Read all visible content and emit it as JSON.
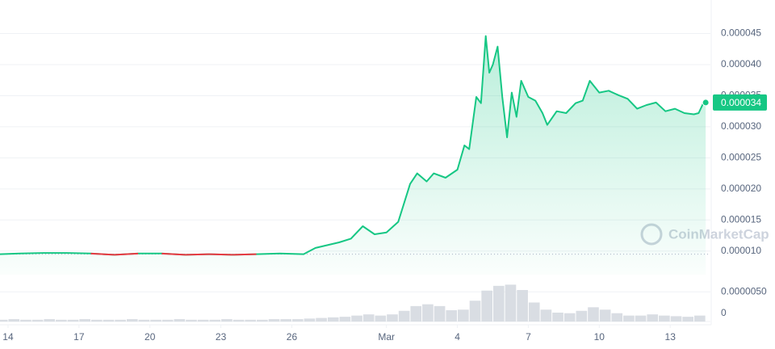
{
  "chart_data": [
    {
      "type": "line",
      "x": [
        13.66,
        14.5,
        15.5,
        16.5,
        17.5,
        18.5,
        19.5,
        20.5,
        21.5,
        22.5,
        23.5,
        24.5,
        25.5,
        26.5,
        27,
        28,
        28.5,
        29,
        29.5,
        30,
        30.5,
        31,
        31.3,
        31.7,
        32,
        32.5,
        33,
        33.3,
        33.5,
        33.8,
        34,
        34.2,
        34.35,
        34.5,
        34.7,
        34.9,
        35.1,
        35.3,
        35.5,
        35.7,
        36,
        36.3,
        36.6,
        36.8,
        37.2,
        37.6,
        38,
        38.3,
        38.6,
        39,
        39.4,
        39.8,
        40.2,
        40.6,
        41,
        41.4,
        41.8,
        42.2,
        42.6,
        43,
        43.2,
        43.4,
        43.5
      ],
      "values": [
        9.5e-06,
        9.6e-06,
        9.7e-06,
        9.7e-06,
        9.6e-06,
        9.4e-06,
        9.6e-06,
        9.6e-06,
        9.4e-06,
        9.5e-06,
        9.4e-06,
        9.5e-06,
        9.6e-06,
        9.5e-06,
        1.05e-05,
        1.14e-05,
        1.2e-05,
        1.4e-05,
        1.27e-05,
        1.3e-05,
        1.47e-05,
        2.08e-05,
        2.25e-05,
        2.12e-05,
        2.25e-05,
        2.18e-05,
        2.31e-05,
        2.7e-05,
        2.64e-05,
        3.48e-05,
        3.38e-05,
        4.46e-05,
        3.87e-05,
        4e-05,
        4.29e-05,
        3.48e-05,
        2.83e-05,
        3.55e-05,
        3.16e-05,
        3.74e-05,
        3.48e-05,
        3.42e-05,
        3.22e-05,
        3.03e-05,
        3.25e-05,
        3.22e-05,
        3.38e-05,
        3.42e-05,
        3.74e-05,
        3.55e-05,
        3.58e-05,
        3.51e-05,
        3.45e-05,
        3.29e-05,
        3.35e-05,
        3.39e-05,
        3.25e-05,
        3.29e-05,
        3.22e-05,
        3.2e-05,
        3.22e-05,
        3.38e-05,
        3.39e-05
      ],
      "color": "#16c784",
      "down_color": "#ea3943",
      "current_price_label": "0.000034",
      "watermark": "CoinMarketCap",
      "xlim": [
        13.66,
        43.7
      ],
      "xticks": [
        14,
        17,
        20,
        23,
        26,
        {
          "value": 30,
          "label": "Mar"
        },
        {
          "value": 33,
          "label": "4"
        },
        {
          "value": 36,
          "label": "7"
        },
        {
          "value": 39,
          "label": "10"
        },
        {
          "value": 42,
          "label": "13"
        }
      ],
      "ylim": [
        6.2e-06,
        5.04e-05
      ],
      "yticks": [
        {
          "value": 1e-05,
          "label": "0.000010"
        },
        1.5e-05,
        {
          "value": 2e-05,
          "label": "0.000020"
        },
        2.5e-05,
        {
          "value": 3e-05,
          "label": "0.000030"
        },
        3.5e-05,
        {
          "value": 4e-05,
          "label": "0.000040"
        },
        4.5e-05
      ],
      "grid": true
    },
    {
      "type": "bar",
      "x": [
        13.75,
        14.25,
        14.75,
        15.25,
        15.75,
        16.25,
        16.75,
        17.25,
        17.75,
        18.25,
        18.75,
        19.25,
        19.75,
        20.25,
        20.75,
        21.25,
        21.75,
        22.25,
        22.75,
        23.25,
        23.75,
        24.25,
        24.75,
        25.25,
        25.75,
        26.25,
        26.75,
        27.25,
        27.75,
        28.25,
        28.75,
        29.25,
        29.75,
        30.25,
        30.75,
        31.25,
        31.75,
        32.25,
        32.75,
        33.25,
        33.75,
        34.25,
        34.75,
        35.25,
        35.75,
        36.25,
        36.75,
        37.25,
        37.75,
        38.25,
        38.75,
        39.25,
        39.75,
        40.25,
        40.75,
        41.25,
        41.75,
        42.25,
        42.75,
        43.25
      ],
      "values": [
        3e-07,
        4e-07,
        3e-07,
        3e-07,
        4e-07,
        3e-07,
        3e-07,
        4e-07,
        3e-07,
        3e-07,
        3e-07,
        4e-07,
        3e-07,
        3e-07,
        3e-07,
        4e-07,
        3e-07,
        3e-07,
        3e-07,
        4e-07,
        3e-07,
        3e-07,
        3e-07,
        4e-07,
        4e-07,
        4e-07,
        5e-07,
        6e-07,
        7e-07,
        8e-07,
        1e-06,
        1.2e-06,
        1e-06,
        1.2e-06,
        1.8e-06,
        2.6e-06,
        2.9e-06,
        2.6e-06,
        1.9e-06,
        2e-06,
        3.5e-06,
        5.2e-06,
        6e-06,
        6.2e-06,
        5.3e-06,
        3.2e-06,
        2e-06,
        1.5e-06,
        1.4e-06,
        1.8e-06,
        2.4e-06,
        2e-06,
        1.4e-06,
        1e-06,
        1e-06,
        1.2e-06,
        1e-06,
        9e-07,
        8e-07,
        1e-06
      ],
      "color": "#d9dde3",
      "ylim": [
        0,
        7.2e-06
      ],
      "yticks": [
        0,
        {
          "value": 5e-06,
          "label": "0.0000050"
        }
      ]
    }
  ]
}
